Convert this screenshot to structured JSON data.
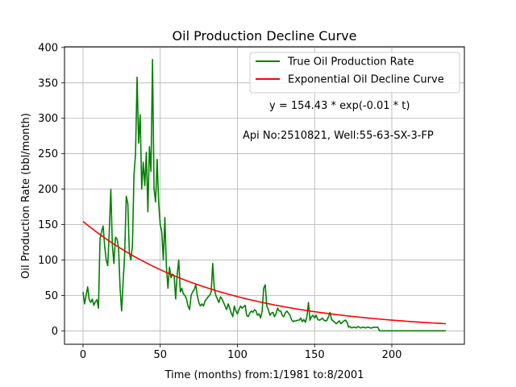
{
  "chart_data": {
    "type": "line",
    "title": "Oil Production Decline Curve",
    "xlabel": "Time (months) from:1/1981 to:8/2001",
    "ylabel": "Oil Production Rate (bbl/month)",
    "xlim": [
      -12,
      247
    ],
    "ylim": [
      -19,
      401
    ],
    "x_ticks": [
      0,
      50,
      100,
      150,
      200
    ],
    "y_ticks": [
      0,
      50,
      100,
      150,
      200,
      250,
      300,
      350,
      400
    ],
    "grid": true,
    "legend_position": "top-right",
    "annotations": [
      "y = 154.43 * exp(-0.01 * t)",
      "Api No:2510821, Well:55-63-SX-3-FP"
    ],
    "series": [
      {
        "name": "True Oil Production Rate",
        "color": "#008000",
        "points": [
          [
            0,
            55
          ],
          [
            1,
            38
          ],
          [
            2,
            50
          ],
          [
            3,
            62
          ],
          [
            4,
            44
          ],
          [
            5,
            40
          ],
          [
            6,
            45
          ],
          [
            7,
            36
          ],
          [
            8,
            41
          ],
          [
            9,
            44
          ],
          [
            10,
            32
          ],
          [
            11,
            130
          ],
          [
            12,
            140
          ],
          [
            13,
            148
          ],
          [
            14,
            120
          ],
          [
            15,
            100
          ],
          [
            16,
            92
          ],
          [
            17,
            140
          ],
          [
            18,
            200
          ],
          [
            19,
            120
          ],
          [
            20,
            95
          ],
          [
            21,
            132
          ],
          [
            22,
            130
          ],
          [
            23,
            118
          ],
          [
            24,
            60
          ],
          [
            25,
            28
          ],
          [
            26,
            70
          ],
          [
            27,
            110
          ],
          [
            28,
            190
          ],
          [
            29,
            180
          ],
          [
            30,
            110
          ],
          [
            31,
            100
          ],
          [
            32,
            120
          ],
          [
            33,
            220
          ],
          [
            34,
            250
          ],
          [
            35,
            358
          ],
          [
            36,
            265
          ],
          [
            37,
            305
          ],
          [
            38,
            200
          ],
          [
            39,
            238
          ],
          [
            40,
            205
          ],
          [
            41,
            252
          ],
          [
            42,
            168
          ],
          [
            43,
            260
          ],
          [
            44,
            225
          ],
          [
            45,
            383
          ],
          [
            46,
            200
          ],
          [
            47,
            182
          ],
          [
            48,
            242
          ],
          [
            49,
            180
          ],
          [
            50,
            150
          ],
          [
            51,
            140
          ],
          [
            52,
            100
          ],
          [
            53,
            160
          ],
          [
            54,
            90
          ],
          [
            55,
            60
          ],
          [
            56,
            90
          ],
          [
            57,
            75
          ],
          [
            58,
            80
          ],
          [
            59,
            78
          ],
          [
            60,
            45
          ],
          [
            61,
            80
          ],
          [
            62,
            100
          ],
          [
            63,
            55
          ],
          [
            64,
            60
          ],
          [
            65,
            52
          ],
          [
            66,
            50
          ],
          [
            67,
            45
          ],
          [
            68,
            35
          ],
          [
            69,
            30
          ],
          [
            70,
            50
          ],
          [
            71,
            55
          ],
          [
            72,
            58
          ],
          [
            73,
            65
          ],
          [
            74,
            50
          ],
          [
            75,
            40
          ],
          [
            76,
            35
          ],
          [
            77,
            38
          ],
          [
            78,
            35
          ],
          [
            79,
            42
          ],
          [
            80,
            45
          ],
          [
            81,
            48
          ],
          [
            82,
            50
          ],
          [
            83,
            55
          ],
          [
            84,
            95
          ],
          [
            85,
            60
          ],
          [
            86,
            50
          ],
          [
            87,
            45
          ],
          [
            88,
            40
          ],
          [
            89,
            48
          ],
          [
            90,
            45
          ],
          [
            91,
            40
          ],
          [
            92,
            35
          ],
          [
            93,
            30
          ],
          [
            94,
            38
          ],
          [
            95,
            32
          ],
          [
            96,
            25
          ],
          [
            97,
            20
          ],
          [
            98,
            35
          ],
          [
            99,
            28
          ],
          [
            100,
            24
          ],
          [
            101,
            30
          ],
          [
            102,
            35
          ],
          [
            103,
            32
          ],
          [
            104,
            34
          ],
          [
            105,
            36
          ],
          [
            106,
            22
          ],
          [
            107,
            20
          ],
          [
            108,
            25
          ],
          [
            109,
            28
          ],
          [
            110,
            26
          ],
          [
            111,
            30
          ],
          [
            112,
            28
          ],
          [
            113,
            22
          ],
          [
            114,
            24
          ],
          [
            115,
            18
          ],
          [
            116,
            28
          ],
          [
            117,
            60
          ],
          [
            118,
            65
          ],
          [
            119,
            35
          ],
          [
            120,
            30
          ],
          [
            121,
            22
          ],
          [
            122,
            25
          ],
          [
            123,
            26
          ],
          [
            124,
            20
          ],
          [
            125,
            24
          ],
          [
            126,
            32
          ],
          [
            127,
            28
          ],
          [
            128,
            28
          ],
          [
            129,
            22
          ],
          [
            130,
            20
          ],
          [
            131,
            25
          ],
          [
            132,
            28
          ],
          [
            133,
            25
          ],
          [
            134,
            22
          ],
          [
            135,
            16
          ],
          [
            136,
            13
          ],
          [
            137,
            14
          ],
          [
            138,
            14
          ],
          [
            139,
            15
          ],
          [
            140,
            15
          ],
          [
            141,
            18
          ],
          [
            142,
            13
          ],
          [
            143,
            16
          ],
          [
            144,
            12
          ],
          [
            145,
            20
          ],
          [
            146,
            40
          ],
          [
            147,
            15
          ],
          [
            148,
            20
          ],
          [
            149,
            22
          ],
          [
            150,
            18
          ],
          [
            151,
            22
          ],
          [
            152,
            16
          ],
          [
            153,
            15
          ],
          [
            154,
            16
          ],
          [
            155,
            18
          ],
          [
            156,
            15
          ],
          [
            157,
            14
          ],
          [
            158,
            15
          ],
          [
            159,
            20
          ],
          [
            160,
            26
          ],
          [
            161,
            16
          ],
          [
            162,
            14
          ],
          [
            163,
            12
          ],
          [
            164,
            10
          ],
          [
            165,
            12
          ],
          [
            166,
            14
          ],
          [
            167,
            10
          ],
          [
            168,
            12
          ],
          [
            169,
            14
          ],
          [
            170,
            15
          ],
          [
            171,
            12
          ],
          [
            172,
            5
          ],
          [
            173,
            6
          ],
          [
            174,
            4
          ],
          [
            175,
            5
          ],
          [
            176,
            5
          ],
          [
            177,
            4
          ],
          [
            178,
            6
          ],
          [
            179,
            5
          ],
          [
            180,
            4
          ],
          [
            181,
            5
          ],
          [
            182,
            5
          ],
          [
            183,
            4
          ],
          [
            184,
            5
          ],
          [
            185,
            5
          ],
          [
            186,
            4
          ],
          [
            187,
            4
          ],
          [
            188,
            5
          ],
          [
            189,
            5
          ],
          [
            190,
            5
          ],
          [
            191,
            5
          ],
          [
            192,
            0
          ],
          [
            200,
            0
          ],
          [
            210,
            0
          ],
          [
            220,
            0
          ],
          [
            230,
            0
          ],
          [
            235,
            0
          ]
        ]
      },
      {
        "name": "Exponential Oil Decline Curve",
        "color": "#ff0000",
        "formula": {
          "a": 154.43,
          "b": 0.01163
        },
        "x_range": [
          0,
          235
        ]
      }
    ]
  }
}
